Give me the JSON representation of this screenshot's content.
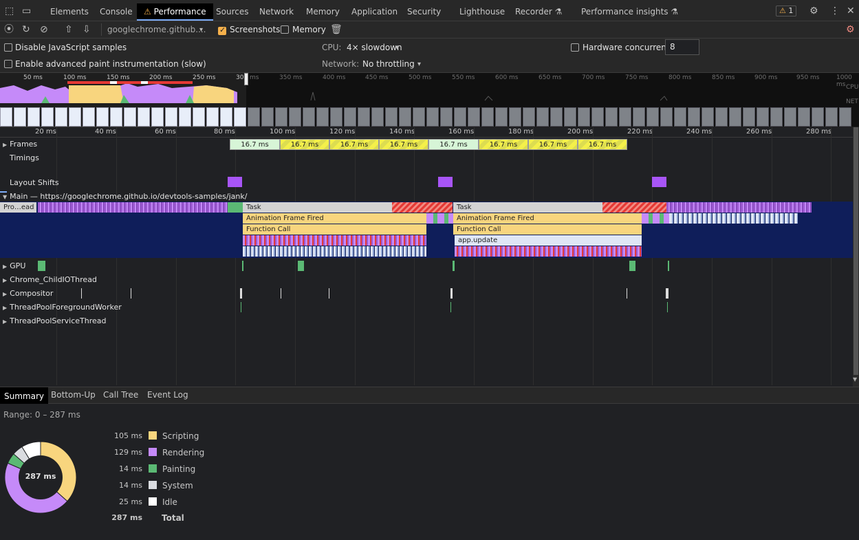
{
  "tabs": [
    {
      "label": "Elements"
    },
    {
      "label": "Console"
    },
    {
      "label": "Performance"
    },
    {
      "label": "Sources"
    },
    {
      "label": "Network"
    },
    {
      "label": "Memory"
    },
    {
      "label": "Application"
    },
    {
      "label": "Security"
    },
    {
      "label": "Lighthouse"
    },
    {
      "label": "Recorder"
    },
    {
      "label": "Performance insights"
    }
  ],
  "issues_count": "1",
  "toolbar": {
    "recording_select": "googlechrome.github....",
    "screenshots_label": "Screenshots",
    "memory_label": "Memory"
  },
  "settings": {
    "disable_js_samples": "Disable JavaScript samples",
    "paint_instrumentation": "Enable advanced paint instrumentation (slow)",
    "cpu_label": "CPU:",
    "cpu_value": "4× slowdown",
    "network_label": "Network:",
    "network_value": "No throttling",
    "hw_concurrency_label": "Hardware concurrency",
    "hw_concurrency_value": "8"
  },
  "overview": {
    "ticks": [
      "50 ms",
      "100 ms",
      "150 ms",
      "200 ms",
      "250 ms",
      "300 ms",
      "350 ms",
      "400 ms",
      "450 ms",
      "500 ms",
      "550 ms",
      "600 ms",
      "650 ms",
      "700 ms",
      "750 ms",
      "800 ms",
      "850 ms",
      "900 ms",
      "950 ms",
      "1000 ms"
    ],
    "cpu_label": "CPU",
    "net_label": "NET"
  },
  "ruler": {
    "ticks": [
      "20 ms",
      "40 ms",
      "60 ms",
      "80 ms",
      "100 ms",
      "120 ms",
      "140 ms",
      "160 ms",
      "180 ms",
      "200 ms",
      "220 ms",
      "240 ms",
      "260 ms",
      "280 ms"
    ]
  },
  "tracks": {
    "frames": "Frames",
    "timings": "Timings",
    "layout_shifts": "Layout Shifts",
    "main": "Main — https://googlechrome.github.io/devtools-samples/jank/",
    "gpu": "GPU",
    "child_io": "Chrome_ChildIOThread",
    "compositor": "Compositor",
    "foreground_worker": "ThreadPoolForegroundWorker",
    "service_thread": "ThreadPoolServiceThread"
  },
  "frames": [
    "16.7 ms",
    "16.7 ms",
    "16.7 ms",
    "16.7 ms",
    "16.7 ms",
    "16.7 ms",
    "16.7 ms",
    "16.7 ms"
  ],
  "main_events": {
    "program": "Pro…ead",
    "task": "Task",
    "animation_frame": "Animation Frame Fired",
    "function_call": "Function Call",
    "app_update": "app.update"
  },
  "summary_tabs": [
    "Summary",
    "Bottom-Up",
    "Call Tree",
    "Event Log"
  ],
  "summary": {
    "range": "Range: 0 – 287 ms",
    "center": "287 ms",
    "items": [
      {
        "value": "105 ms",
        "name": "Scripting",
        "color": "#f8d57e",
        "ms": 105
      },
      {
        "value": "129 ms",
        "name": "Rendering",
        "color": "#c58af9",
        "ms": 129
      },
      {
        "value": "14 ms",
        "name": "Painting",
        "color": "#5bb974",
        "ms": 14
      },
      {
        "value": "14 ms",
        "name": "System",
        "color": "#dadce0",
        "ms": 14
      },
      {
        "value": "25 ms",
        "name": "Idle",
        "color": "#ffffff",
        "ms": 25
      }
    ],
    "total_value": "287 ms",
    "total_label": "Total"
  },
  "colors": {
    "accent": "#7cacf8",
    "scripting": "#f8d57e",
    "rendering": "#c58af9",
    "painting": "#5bb974",
    "main_bg": "#0f1e5a"
  }
}
